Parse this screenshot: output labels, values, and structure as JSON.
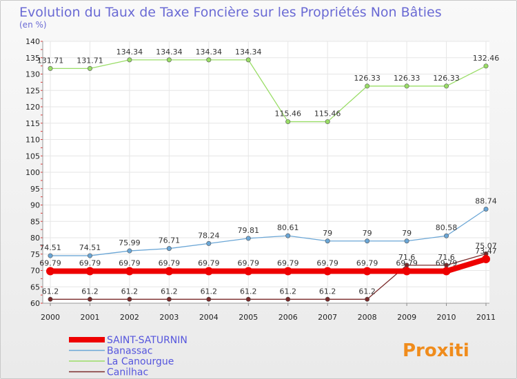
{
  "chart_data": {
    "type": "line",
    "title": "Evolution du Taux de Taxe Foncière sur les Propriétés Non Bâties",
    "ylabel": "(en %)",
    "xlabel": "",
    "ylim": [
      60,
      140
    ],
    "yticks": [
      "60",
      "65",
      "70",
      "75",
      "80",
      "85",
      "90",
      "95",
      "100",
      "105",
      "110",
      "115",
      "120",
      "125",
      "130",
      "135",
      "140"
    ],
    "categories": [
      "2000",
      "2001",
      "2002",
      "2003",
      "2004",
      "2005",
      "2006",
      "2007",
      "2008",
      "2009",
      "2010",
      "2011"
    ],
    "series": [
      {
        "name": "SAINT-SATURNIN",
        "color": "#ee0000",
        "values": [
          69.79,
          69.79,
          69.79,
          69.79,
          69.79,
          69.79,
          69.79,
          69.79,
          69.79,
          69.79,
          69.79,
          73.47
        ],
        "labels": [
          "69.79",
          "69.79",
          "69.79",
          "69.79",
          "69.79",
          "69.79",
          "69.79",
          "69.79",
          "69.79",
          "69.79",
          "69.79",
          "73.47"
        ]
      },
      {
        "name": "Banassac",
        "color": "#6aa6d6",
        "values": [
          74.51,
          74.51,
          75.99,
          76.71,
          78.24,
          79.81,
          80.61,
          79,
          79,
          79,
          80.58,
          88.74
        ],
        "labels": [
          "74.51",
          "74.51",
          "75.99",
          "76.71",
          "78.24",
          "79.81",
          "80.61",
          "79",
          "79",
          "79",
          "80.58",
          "88.74"
        ]
      },
      {
        "name": "La Canourgue",
        "color": "#99dd66",
        "values": [
          131.71,
          131.71,
          134.34,
          134.34,
          134.34,
          134.34,
          115.46,
          115.46,
          126.33,
          126.33,
          126.33,
          132.46
        ],
        "labels": [
          "131.71",
          "131.71",
          "134.34",
          "134.34",
          "134.34",
          "134.34",
          "115.46",
          "115.46",
          "126.33",
          "126.33",
          "126.33",
          "132.46"
        ]
      },
      {
        "name": "Canilhac",
        "color": "#7a2a2a",
        "values": [
          61.2,
          61.2,
          61.2,
          61.2,
          61.2,
          61.2,
          61.2,
          61.2,
          61.2,
          71.6,
          71.6,
          75.07
        ],
        "labels": [
          "61.2",
          "61.2",
          "61.2",
          "61.2",
          "61.2",
          "61.2",
          "61.2",
          "61.2",
          "61.2",
          "71.6",
          "71.6",
          "75.07"
        ]
      }
    ],
    "legend": {
      "placement": "bottom-left"
    }
  },
  "brand": {
    "text": "Proxiti"
  }
}
